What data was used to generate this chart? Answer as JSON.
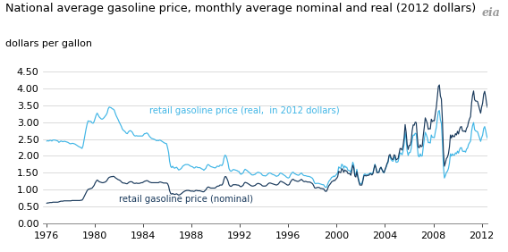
{
  "title": "National average gasoline price, monthly average nominal and real (2012 dollars)",
  "ylabel": "dollars per gallon",
  "real_label": "retail gasoline price (real,  in 2012 dollars)",
  "nominal_label": "retail gasoline price (nominal)",
  "real_color": "#41b6e6",
  "nominal_color": "#1a3a5c",
  "ylim": [
    0.0,
    4.5
  ],
  "yticks": [
    0.0,
    0.5,
    1.0,
    1.5,
    2.0,
    2.5,
    3.0,
    3.5,
    4.0,
    4.5
  ],
  "xticks": [
    1976,
    1980,
    1984,
    1988,
    1992,
    1996,
    2000,
    2004,
    2008,
    2012
  ],
  "bg_color": "#ffffff",
  "grid_color": "#cccccc",
  "watermark": "eia",
  "title_fontsize": 9.2,
  "axis_fontsize": 8.0,
  "nominal_monthly": [
    0.59,
    0.6,
    0.6,
    0.61,
    0.61,
    0.61,
    0.62,
    0.62,
    0.62,
    0.62,
    0.62,
    0.62,
    0.63,
    0.64,
    0.65,
    0.65,
    0.65,
    0.66,
    0.66,
    0.66,
    0.66,
    0.66,
    0.66,
    0.66,
    0.66,
    0.67,
    0.67,
    0.67,
    0.67,
    0.67,
    0.67,
    0.67,
    0.67,
    0.67,
    0.68,
    0.68,
    0.72,
    0.78,
    0.84,
    0.9,
    0.96,
    1.0,
    1.01,
    1.02,
    1.03,
    1.04,
    1.08,
    1.12,
    1.19,
    1.24,
    1.28,
    1.26,
    1.23,
    1.22,
    1.21,
    1.2,
    1.2,
    1.21,
    1.22,
    1.24,
    1.28,
    1.33,
    1.36,
    1.37,
    1.38,
    1.38,
    1.39,
    1.38,
    1.35,
    1.33,
    1.31,
    1.29,
    1.28,
    1.26,
    1.23,
    1.2,
    1.19,
    1.19,
    1.18,
    1.17,
    1.17,
    1.2,
    1.22,
    1.23,
    1.23,
    1.22,
    1.19,
    1.18,
    1.18,
    1.19,
    1.18,
    1.18,
    1.18,
    1.19,
    1.2,
    1.2,
    1.22,
    1.24,
    1.25,
    1.26,
    1.26,
    1.24,
    1.22,
    1.21,
    1.2,
    1.2,
    1.2,
    1.2,
    1.2,
    1.2,
    1.2,
    1.2,
    1.22,
    1.22,
    1.21,
    1.2,
    1.19,
    1.19,
    1.19,
    1.19,
    1.17,
    1.1,
    0.96,
    0.88,
    0.86,
    0.88,
    0.86,
    0.85,
    0.86,
    0.87,
    0.85,
    0.83,
    0.84,
    0.86,
    0.88,
    0.91,
    0.93,
    0.95,
    0.96,
    0.97,
    0.97,
    0.97,
    0.96,
    0.95,
    0.95,
    0.95,
    0.94,
    0.95,
    0.97,
    0.97,
    0.96,
    0.96,
    0.96,
    0.95,
    0.94,
    0.93,
    0.93,
    0.96,
    0.99,
    1.04,
    1.07,
    1.07,
    1.05,
    1.04,
    1.04,
    1.04,
    1.04,
    1.04,
    1.06,
    1.09,
    1.1,
    1.1,
    1.13,
    1.13,
    1.13,
    1.18,
    1.3,
    1.38,
    1.38,
    1.32,
    1.25,
    1.14,
    1.1,
    1.09,
    1.11,
    1.14,
    1.14,
    1.14,
    1.14,
    1.13,
    1.13,
    1.12,
    1.09,
    1.08,
    1.1,
    1.12,
    1.18,
    1.21,
    1.2,
    1.19,
    1.17,
    1.15,
    1.13,
    1.11,
    1.1,
    1.1,
    1.11,
    1.12,
    1.15,
    1.17,
    1.18,
    1.17,
    1.16,
    1.14,
    1.11,
    1.1,
    1.1,
    1.1,
    1.11,
    1.14,
    1.17,
    1.19,
    1.19,
    1.18,
    1.17,
    1.16,
    1.15,
    1.14,
    1.13,
    1.14,
    1.16,
    1.2,
    1.24,
    1.24,
    1.22,
    1.21,
    1.19,
    1.17,
    1.15,
    1.13,
    1.13,
    1.15,
    1.22,
    1.26,
    1.3,
    1.3,
    1.27,
    1.26,
    1.25,
    1.24,
    1.24,
    1.26,
    1.28,
    1.3,
    1.27,
    1.24,
    1.23,
    1.24,
    1.23,
    1.22,
    1.22,
    1.22,
    1.21,
    1.19,
    1.17,
    1.12,
    1.05,
    1.04,
    1.05,
    1.06,
    1.06,
    1.05,
    1.03,
    1.03,
    1.02,
    1.02,
    0.97,
    0.94,
    0.95,
    1.02,
    1.1,
    1.14,
    1.18,
    1.23,
    1.24,
    1.27,
    1.26,
    1.3,
    1.33,
    1.38,
    1.54,
    1.51,
    1.5,
    1.62,
    1.59,
    1.51,
    1.58,
    1.55,
    1.55,
    1.48,
    1.47,
    1.47,
    1.42,
    1.56,
    1.72,
    1.64,
    1.4,
    1.37,
    1.53,
    1.36,
    1.23,
    1.13,
    1.13,
    1.13,
    1.25,
    1.4,
    1.42,
    1.4,
    1.41,
    1.42,
    1.42,
    1.46,
    1.46,
    1.43,
    1.47,
    1.61,
    1.73,
    1.64,
    1.5,
    1.5,
    1.51,
    1.62,
    1.66,
    1.59,
    1.53,
    1.5,
    1.59,
    1.67,
    1.77,
    1.83,
    2.01,
    2.04,
    1.94,
    1.9,
    1.89,
    2.03,
    2.01,
    1.88,
    1.9,
    1.92,
    2.07,
    2.22,
    2.21,
    2.17,
    2.31,
    2.54,
    2.93,
    2.7,
    2.34,
    2.19,
    2.31,
    2.31,
    2.44,
    2.75,
    2.92,
    2.91,
    3.0,
    2.99,
    2.59,
    2.26,
    2.24,
    2.33,
    2.27,
    2.29,
    2.6,
    2.85,
    3.13,
    3.05,
    2.96,
    2.79,
    2.81,
    2.8,
    3.09,
    3.02,
    3.05,
    3.04,
    3.26,
    3.45,
    3.76,
    4.06,
    4.11,
    3.78,
    3.69,
    3.07,
    2.15,
    1.69,
    1.79,
    1.92,
    1.96,
    2.06,
    2.26,
    2.62,
    2.53,
    2.62,
    2.57,
    2.57,
    2.66,
    2.62,
    2.73,
    2.65,
    2.78,
    2.86,
    2.87,
    2.74,
    2.73,
    2.74,
    2.71,
    2.82,
    2.87,
    3.01,
    3.1,
    3.17,
    3.56,
    3.8,
    3.93,
    3.67,
    3.63,
    3.63,
    3.61,
    3.49,
    3.38,
    3.27,
    3.45,
    3.57,
    3.83,
    3.92,
    3.76,
    3.54,
    3.43,
    3.72
  ],
  "real_monthly": [
    2.44,
    2.45,
    2.44,
    2.46,
    2.46,
    2.44,
    2.47,
    2.47,
    2.47,
    2.46,
    2.45,
    2.44,
    2.4,
    2.42,
    2.44,
    2.43,
    2.42,
    2.43,
    2.43,
    2.42,
    2.41,
    2.4,
    2.38,
    2.36,
    2.36,
    2.37,
    2.37,
    2.36,
    2.35,
    2.33,
    2.31,
    2.29,
    2.27,
    2.26,
    2.24,
    2.22,
    2.3,
    2.47,
    2.65,
    2.8,
    2.94,
    3.04,
    3.03,
    3.03,
    3.02,
    2.98,
    2.97,
    3.02,
    3.12,
    3.21,
    3.27,
    3.22,
    3.16,
    3.13,
    3.1,
    3.09,
    3.11,
    3.14,
    3.18,
    3.22,
    3.28,
    3.4,
    3.45,
    3.44,
    3.43,
    3.4,
    3.39,
    3.36,
    3.27,
    3.19,
    3.13,
    3.07,
    3.0,
    2.94,
    2.88,
    2.8,
    2.76,
    2.74,
    2.71,
    2.67,
    2.66,
    2.71,
    2.74,
    2.75,
    2.73,
    2.7,
    2.64,
    2.6,
    2.59,
    2.6,
    2.59,
    2.59,
    2.59,
    2.59,
    2.59,
    2.59,
    2.62,
    2.66,
    2.66,
    2.68,
    2.67,
    2.63,
    2.58,
    2.55,
    2.52,
    2.51,
    2.5,
    2.49,
    2.47,
    2.45,
    2.46,
    2.45,
    2.47,
    2.46,
    2.44,
    2.42,
    2.4,
    2.38,
    2.37,
    2.36,
    2.24,
    2.1,
    1.84,
    1.69,
    1.65,
    1.69,
    1.65,
    1.63,
    1.65,
    1.66,
    1.62,
    1.58,
    1.59,
    1.61,
    1.64,
    1.69,
    1.71,
    1.73,
    1.74,
    1.74,
    1.74,
    1.73,
    1.71,
    1.69,
    1.68,
    1.67,
    1.64,
    1.64,
    1.67,
    1.67,
    1.65,
    1.65,
    1.65,
    1.63,
    1.61,
    1.6,
    1.57,
    1.6,
    1.63,
    1.7,
    1.74,
    1.73,
    1.7,
    1.68,
    1.67,
    1.66,
    1.65,
    1.64,
    1.65,
    1.69,
    1.69,
    1.68,
    1.72,
    1.72,
    1.71,
    1.77,
    1.93,
    2.02,
    2.0,
    1.91,
    1.79,
    1.62,
    1.56,
    1.54,
    1.56,
    1.59,
    1.59,
    1.58,
    1.57,
    1.56,
    1.54,
    1.53,
    1.47,
    1.45,
    1.47,
    1.49,
    1.56,
    1.6,
    1.58,
    1.56,
    1.53,
    1.51,
    1.48,
    1.45,
    1.43,
    1.43,
    1.44,
    1.45,
    1.48,
    1.5,
    1.51,
    1.5,
    1.49,
    1.47,
    1.43,
    1.41,
    1.41,
    1.4,
    1.41,
    1.44,
    1.47,
    1.49,
    1.49,
    1.47,
    1.45,
    1.44,
    1.43,
    1.41,
    1.39,
    1.4,
    1.41,
    1.45,
    1.49,
    1.48,
    1.46,
    1.44,
    1.42,
    1.4,
    1.37,
    1.35,
    1.34,
    1.36,
    1.43,
    1.47,
    1.51,
    1.51,
    1.47,
    1.46,
    1.44,
    1.43,
    1.42,
    1.44,
    1.47,
    1.49,
    1.45,
    1.42,
    1.41,
    1.41,
    1.4,
    1.39,
    1.39,
    1.38,
    1.37,
    1.35,
    1.33,
    1.27,
    1.19,
    1.17,
    1.18,
    1.18,
    1.18,
    1.17,
    1.16,
    1.15,
    1.14,
    1.14,
    1.09,
    1.06,
    1.07,
    1.15,
    1.23,
    1.27,
    1.31,
    1.36,
    1.37,
    1.4,
    1.38,
    1.42,
    1.45,
    1.5,
    1.67,
    1.64,
    1.63,
    1.75,
    1.72,
    1.63,
    1.7,
    1.66,
    1.66,
    1.58,
    1.56,
    1.56,
    1.5,
    1.65,
    1.81,
    1.72,
    1.47,
    1.43,
    1.6,
    1.42,
    1.28,
    1.17,
    1.17,
    1.17,
    1.29,
    1.44,
    1.46,
    1.44,
    1.44,
    1.45,
    1.45,
    1.49,
    1.49,
    1.46,
    1.49,
    1.63,
    1.75,
    1.65,
    1.52,
    1.51,
    1.52,
    1.62,
    1.66,
    1.59,
    1.52,
    1.49,
    1.58,
    1.65,
    1.74,
    1.8,
    1.97,
    1.99,
    1.89,
    1.85,
    1.84,
    1.97,
    1.94,
    1.81,
    1.81,
    1.83,
    1.96,
    2.09,
    2.07,
    2.03,
    2.15,
    2.36,
    2.71,
    2.49,
    2.15,
    2.01,
    2.1,
    2.1,
    2.21,
    2.48,
    2.62,
    2.61,
    2.67,
    2.66,
    2.3,
    2.0,
    1.97,
    2.06,
    1.99,
    2.0,
    2.26,
    2.47,
    2.7,
    2.63,
    2.54,
    2.39,
    2.4,
    2.38,
    2.62,
    2.55,
    2.55,
    2.54,
    2.71,
    2.85,
    3.1,
    3.32,
    3.35,
    3.07,
    2.97,
    2.44,
    1.7,
    1.34,
    1.41,
    1.51,
    1.54,
    1.62,
    1.78,
    2.06,
    1.99,
    2.06,
    2.02,
    2.02,
    2.09,
    2.06,
    2.14,
    2.08,
    2.18,
    2.24,
    2.24,
    2.14,
    2.13,
    2.14,
    2.11,
    2.2,
    2.23,
    2.34,
    2.39,
    2.44,
    2.73,
    2.9,
    2.99,
    2.78,
    2.74,
    2.73,
    2.71,
    2.61,
    2.52,
    2.43,
    2.54,
    2.62,
    2.81,
    2.87,
    2.75,
    2.6,
    2.51,
    2.72
  ]
}
